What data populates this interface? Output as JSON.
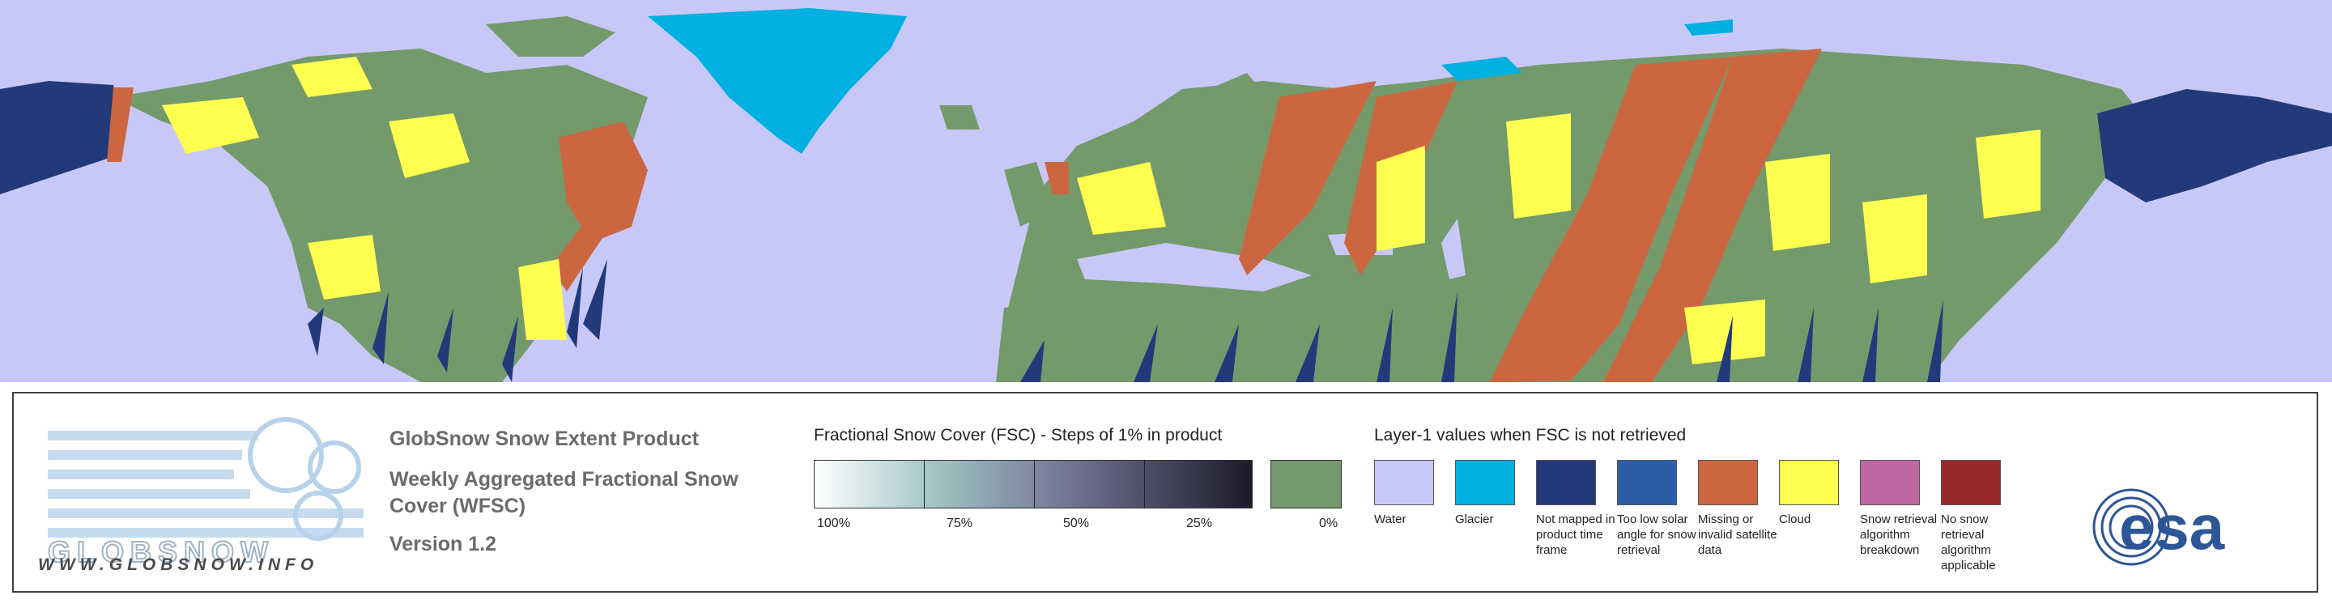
{
  "legend": {
    "logo_url": "WWW.GLOBSNOW.INFO",
    "logo_word": "GLOBSNOW",
    "product_title": "GlobSnow Snow Extent Product",
    "product_subtitle": "Weekly Aggregated Fractional Snow Cover (WFSC)",
    "version": "Version 1.2",
    "fsc_title": "Fractional Snow Cover (FSC) - Steps of 1% in product",
    "fsc_ticks": [
      "100%",
      "75%",
      "50%",
      "25%",
      "0%"
    ],
    "layer1_title": "Layer-1 values when FSC is not retrieved",
    "classes": [
      {
        "label": "Water",
        "color": "#c8c8f8"
      },
      {
        "label": "Glacier",
        "color": "#00b0e0"
      },
      {
        "label": "Not mapped in product time frame",
        "color": "#223a7a"
      },
      {
        "label": "Too low solar angle for snow retrieval",
        "color": "#2a5fa8"
      },
      {
        "label": "Missing or invalid satellite data",
        "color": "#cc6640"
      },
      {
        "label": "Cloud",
        "color": "#ffff50"
      },
      {
        "label": "Snow retrieval algorithm breakdown",
        "color": "#c066a0"
      },
      {
        "label": "No snow retrieval algorithm applicable",
        "color": "#9a2a2a"
      }
    ],
    "esa_logo": "esa"
  },
  "colors": {
    "land": "#749a6c",
    "water": "#c8c8f8",
    "glacier": "#00b0e0",
    "not_mapped": "#223a7a",
    "missing": "#cc6640",
    "cloud": "#ffff50"
  }
}
